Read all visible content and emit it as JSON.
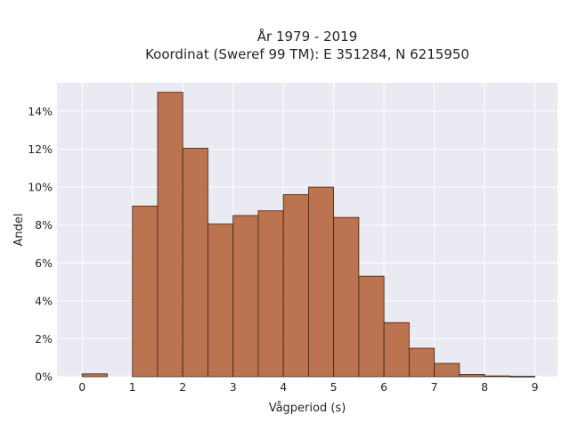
{
  "chart_data": {
    "type": "bar",
    "title": [
      "År 1979 - 2019",
      "Koordinat (Sweref 99 TM): E 351284, N 6215950"
    ],
    "xlabel": "Vågperiod (s)",
    "ylabel": "Andel",
    "bin_width": 0.5,
    "bins": [
      {
        "start": 0.0,
        "end": 0.5,
        "value": 0.15
      },
      {
        "start": 0.5,
        "end": 1.0,
        "value": 0.0
      },
      {
        "start": 1.0,
        "end": 1.5,
        "value": 9.0
      },
      {
        "start": 1.5,
        "end": 2.0,
        "value": 15.0
      },
      {
        "start": 2.0,
        "end": 2.5,
        "value": 12.05
      },
      {
        "start": 2.5,
        "end": 3.0,
        "value": 8.05
      },
      {
        "start": 3.0,
        "end": 3.5,
        "value": 8.5
      },
      {
        "start": 3.5,
        "end": 4.0,
        "value": 8.75
      },
      {
        "start": 4.0,
        "end": 4.5,
        "value": 9.6
      },
      {
        "start": 4.5,
        "end": 5.0,
        "value": 10.0
      },
      {
        "start": 5.0,
        "end": 5.5,
        "value": 8.4
      },
      {
        "start": 5.5,
        "end": 6.0,
        "value": 5.3
      },
      {
        "start": 6.0,
        "end": 6.5,
        "value": 2.85
      },
      {
        "start": 6.5,
        "end": 7.0,
        "value": 1.5
      },
      {
        "start": 7.0,
        "end": 7.5,
        "value": 0.7
      },
      {
        "start": 7.5,
        "end": 8.0,
        "value": 0.12
      },
      {
        "start": 8.0,
        "end": 8.5,
        "value": 0.04
      },
      {
        "start": 8.5,
        "end": 9.0,
        "value": 0.02
      }
    ],
    "xlim": [
      -0.5,
      9.45
    ],
    "ylim": [
      0,
      15.5
    ],
    "xticks": [
      0,
      1,
      2,
      3,
      4,
      5,
      6,
      7,
      8,
      9
    ],
    "yticks": [
      0,
      2,
      4,
      6,
      8,
      10,
      12,
      14
    ],
    "ytick_labels": [
      "0%",
      "2%",
      "4%",
      "6%",
      "8%",
      "10%",
      "12%",
      "14%"
    ],
    "grid": true,
    "legend": "none",
    "colors": {
      "bar_fill": "#b86d47",
      "bar_edge": "#3a2418",
      "plot_background": "#eaeaf2",
      "grid": "#ffffff"
    }
  }
}
